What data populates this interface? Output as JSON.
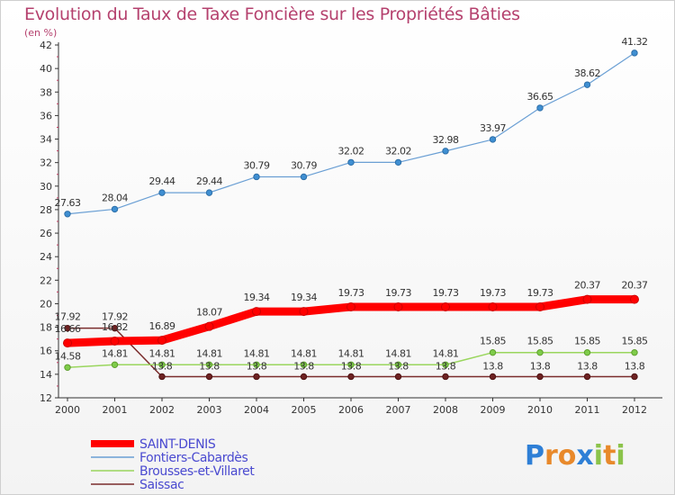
{
  "chart_data": {
    "type": "line",
    "title": "Evolution du Taux de Taxe Foncière sur les Propriétés Bâties",
    "ylabel": "(en %)",
    "xlabel": "",
    "ylim": [
      12,
      42
    ],
    "yticks": [
      12,
      14,
      16,
      18,
      20,
      22,
      24,
      26,
      28,
      30,
      32,
      34,
      36,
      38,
      40,
      42
    ],
    "x": [
      "2000",
      "2001",
      "2002",
      "2003",
      "2004",
      "2005",
      "2006",
      "2007",
      "2008",
      "2009",
      "2010",
      "2011",
      "2012"
    ],
    "grid": false,
    "legend_position": "bottom-left",
    "series": [
      {
        "name": "SAINT-DENIS",
        "color": "#ff0000",
        "values": [
          16.66,
          16.82,
          16.89,
          18.07,
          19.34,
          19.34,
          19.73,
          19.73,
          19.73,
          19.73,
          19.73,
          20.37,
          20.37
        ],
        "labels": [
          "16.66",
          "16.82",
          "16.89",
          "18.07",
          "19.34",
          "19.34",
          "19.73",
          "19.73",
          "19.73",
          "19.73",
          "19.73",
          "20.37",
          "20.37"
        ]
      },
      {
        "name": "Fontiers-Cabardès",
        "color": "#6a9fd4",
        "values": [
          27.63,
          28.04,
          29.44,
          29.44,
          30.79,
          30.79,
          32.02,
          32.02,
          32.98,
          33.97,
          36.65,
          38.62,
          41.32
        ],
        "labels": [
          "27.63",
          "28.04",
          "29.44",
          "29.44",
          "30.79",
          "30.79",
          "32.02",
          "32.02",
          "32.98",
          "33.97",
          "36.65",
          "38.62",
          "41.32"
        ]
      },
      {
        "name": "Brousses-et-Villaret",
        "color": "#9ad65e",
        "values": [
          14.58,
          14.81,
          14.81,
          14.81,
          14.81,
          14.81,
          14.81,
          14.81,
          14.81,
          15.85,
          15.85,
          15.85,
          15.85
        ],
        "labels": [
          "14.58",
          "14.81",
          "14.81",
          "14.81",
          "14.81",
          "14.81",
          "14.81",
          "14.81",
          "14.81",
          "15.85",
          "15.85",
          "15.85",
          "15.85"
        ]
      },
      {
        "name": "Saissac",
        "color": "#7a2c2c",
        "values": [
          17.92,
          17.92,
          13.8,
          13.8,
          13.8,
          13.8,
          13.8,
          13.8,
          13.8,
          13.8,
          13.8,
          13.8,
          13.8
        ],
        "labels": [
          "17.92",
          "17.92",
          "13.8",
          "13.8",
          "13.8",
          "13.8",
          "13.8",
          "13.8",
          "13.8",
          "13.8",
          "13.8",
          "13.8",
          "13.8"
        ]
      }
    ]
  },
  "logo": {
    "text": "Proxiti",
    "letters": [
      {
        "ch": "P",
        "color": "#2e7fd6"
      },
      {
        "ch": "r",
        "color": "#e8892b"
      },
      {
        "ch": "o",
        "color": "#e8892b"
      },
      {
        "ch": "x",
        "color": "#2e7fd6"
      },
      {
        "ch": "i",
        "color": "#8bc34a"
      },
      {
        "ch": "t",
        "color": "#e8892b"
      },
      {
        "ch": "i",
        "color": "#8bc34a"
      }
    ]
  }
}
